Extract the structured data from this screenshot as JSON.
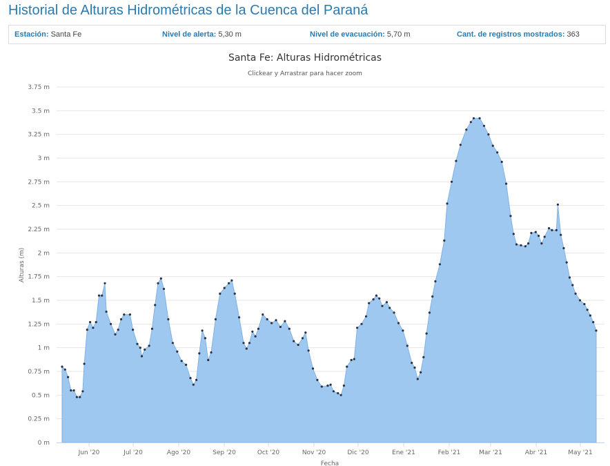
{
  "header": {
    "title": "Historial de Alturas Hidrométricas de la Cuenca del Paraná"
  },
  "info": {
    "station_label": "Estación:",
    "station_value": "Santa Fe",
    "alert_label": "Nivel de alerta:",
    "alert_value": "5,30 m",
    "evac_label": "Nivel de evacuación:",
    "evac_value": "5,70 m",
    "count_label": "Cant. de registros mostrados:",
    "count_value": "363"
  },
  "colors": {
    "title": "#2a7ab0",
    "area_fill": "#9ec8f0",
    "area_line": "#7fb2e5",
    "marker": "#2b3140",
    "grid": "#e6e6e6"
  },
  "chart_data": {
    "type": "area",
    "title": "Santa Fe: Alturas Hidrométricas",
    "subtitle": "Clickear y Arrastrar para hacer zoom",
    "xlabel": "Fecha",
    "ylabel": "Alturas (m)",
    "ylim": [
      0,
      3.75
    ],
    "yticks": [
      "0 m",
      "0.25 m",
      "0.5 m",
      "0.75 m",
      "1 m",
      "1.25 m",
      "1.5 m",
      "1.75 m",
      "2 m",
      "2.25 m",
      "2.5 m",
      "2.75 m",
      "3 m",
      "3.25 m",
      "3.5 m",
      "3.75 m"
    ],
    "xticks": [
      "Jun '20",
      "Jul '20",
      "Ago '20",
      "Sep '20",
      "Oct '20",
      "Nov '20",
      "Dic '20",
      "Ene '21",
      "Feb '21",
      "Mar '21",
      "Abr '21",
      "May '21"
    ],
    "grid": true,
    "legend": false,
    "records_shown": 363,
    "x_range": [
      "2020-05-11",
      "2021-05-08"
    ],
    "series": [
      {
        "name": "Santa Fe",
        "points": [
          [
            "2020-05-11",
            0.8
          ],
          [
            "2020-05-13",
            0.77
          ],
          [
            "2020-05-15",
            0.69
          ],
          [
            "2020-05-17",
            0.55
          ],
          [
            "2020-05-19",
            0.55
          ],
          [
            "2020-05-21",
            0.48
          ],
          [
            "2020-05-23",
            0.48
          ],
          [
            "2020-05-25",
            0.54
          ],
          [
            "2020-05-26",
            0.83
          ],
          [
            "2020-05-28",
            1.19
          ],
          [
            "2020-05-30",
            1.27
          ],
          [
            "2020-06-01",
            1.21
          ],
          [
            "2020-06-03",
            1.27
          ],
          [
            "2020-06-05",
            1.55
          ],
          [
            "2020-06-07",
            1.55
          ],
          [
            "2020-06-09",
            1.68
          ],
          [
            "2020-06-10",
            1.38
          ],
          [
            "2020-06-13",
            1.25
          ],
          [
            "2020-06-16",
            1.14
          ],
          [
            "2020-06-18",
            1.19
          ],
          [
            "2020-06-20",
            1.3
          ],
          [
            "2020-06-22",
            1.35
          ],
          [
            "2020-06-26",
            1.35
          ],
          [
            "2020-06-28",
            1.19
          ],
          [
            "2020-07-01",
            1.04
          ],
          [
            "2020-07-03",
            1.0
          ],
          [
            "2020-07-04",
            0.91
          ],
          [
            "2020-07-06",
            0.98
          ],
          [
            "2020-07-09",
            1.02
          ],
          [
            "2020-07-11",
            1.2
          ],
          [
            "2020-07-13",
            1.45
          ],
          [
            "2020-07-15",
            1.68
          ],
          [
            "2020-07-17",
            1.73
          ],
          [
            "2020-07-19",
            1.62
          ],
          [
            "2020-07-22",
            1.3
          ],
          [
            "2020-07-25",
            1.05
          ],
          [
            "2020-07-28",
            0.96
          ],
          [
            "2020-07-31",
            0.86
          ],
          [
            "2020-08-03",
            0.82
          ],
          [
            "2020-08-06",
            0.68
          ],
          [
            "2020-08-08",
            0.61
          ],
          [
            "2020-08-10",
            0.66
          ],
          [
            "2020-08-12",
            0.94
          ],
          [
            "2020-08-14",
            1.18
          ],
          [
            "2020-08-16",
            1.1
          ],
          [
            "2020-08-18",
            0.87
          ],
          [
            "2020-08-20",
            0.95
          ],
          [
            "2020-08-23",
            1.3
          ],
          [
            "2020-08-26",
            1.57
          ],
          [
            "2020-08-29",
            1.63
          ],
          [
            "2020-09-01",
            1.68
          ],
          [
            "2020-09-03",
            1.71
          ],
          [
            "2020-09-05",
            1.57
          ],
          [
            "2020-09-08",
            1.32
          ],
          [
            "2020-09-11",
            1.05
          ],
          [
            "2020-09-13",
            0.99
          ],
          [
            "2020-09-15",
            1.05
          ],
          [
            "2020-09-17",
            1.17
          ],
          [
            "2020-09-19",
            1.12
          ],
          [
            "2020-09-21",
            1.2
          ],
          [
            "2020-09-24",
            1.35
          ],
          [
            "2020-09-27",
            1.3
          ],
          [
            "2020-09-30",
            1.26
          ],
          [
            "2020-10-03",
            1.29
          ],
          [
            "2020-10-06",
            1.22
          ],
          [
            "2020-10-09",
            1.28
          ],
          [
            "2020-10-12",
            1.2
          ],
          [
            "2020-10-15",
            1.07
          ],
          [
            "2020-10-18",
            1.03
          ],
          [
            "2020-10-21",
            1.1
          ],
          [
            "2020-10-23",
            1.16
          ],
          [
            "2020-10-25",
            0.97
          ],
          [
            "2020-10-28",
            0.78
          ],
          [
            "2020-10-31",
            0.66
          ],
          [
            "2020-11-03",
            0.59
          ],
          [
            "2020-11-07",
            0.6
          ],
          [
            "2020-11-09",
            0.61
          ],
          [
            "2020-11-11",
            0.54
          ],
          [
            "2020-11-14",
            0.52
          ],
          [
            "2020-11-16",
            0.5
          ],
          [
            "2020-11-18",
            0.6
          ],
          [
            "2020-11-20",
            0.8
          ],
          [
            "2020-11-23",
            0.87
          ],
          [
            "2020-11-25",
            0.88
          ],
          [
            "2020-11-27",
            1.21
          ],
          [
            "2020-11-30",
            1.25
          ],
          [
            "2020-12-03",
            1.33
          ],
          [
            "2020-12-05",
            1.47
          ],
          [
            "2020-12-08",
            1.51
          ],
          [
            "2020-12-10",
            1.55
          ],
          [
            "2020-12-12",
            1.52
          ],
          [
            "2020-12-14",
            1.44
          ],
          [
            "2020-12-17",
            1.48
          ],
          [
            "2020-12-19",
            1.42
          ],
          [
            "2020-12-22",
            1.37
          ],
          [
            "2020-12-25",
            1.26
          ],
          [
            "2020-12-28",
            1.18
          ],
          [
            "2020-12-31",
            1.02
          ],
          [
            "2021-01-03",
            0.84
          ],
          [
            "2021-01-05",
            0.79
          ],
          [
            "2021-01-07",
            0.67
          ],
          [
            "2021-01-09",
            0.74
          ],
          [
            "2021-01-11",
            0.9
          ],
          [
            "2021-01-13",
            1.15
          ],
          [
            "2021-01-15",
            1.37
          ],
          [
            "2021-01-17",
            1.54
          ],
          [
            "2021-01-19",
            1.7
          ],
          [
            "2021-01-22",
            1.88
          ],
          [
            "2021-01-25",
            2.13
          ],
          [
            "2021-01-27",
            2.52
          ],
          [
            "2021-01-30",
            2.75
          ],
          [
            "2021-02-02",
            2.97
          ],
          [
            "2021-02-05",
            3.14
          ],
          [
            "2021-02-09",
            3.3
          ],
          [
            "2021-02-12",
            3.38
          ],
          [
            "2021-02-14",
            3.42
          ],
          [
            "2021-02-18",
            3.42
          ],
          [
            "2021-02-21",
            3.34
          ],
          [
            "2021-02-24",
            3.25
          ],
          [
            "2021-02-27",
            3.13
          ],
          [
            "2021-03-02",
            3.06
          ],
          [
            "2021-03-05",
            2.96
          ],
          [
            "2021-03-08",
            2.73
          ],
          [
            "2021-03-11",
            2.39
          ],
          [
            "2021-03-13",
            2.2
          ],
          [
            "2021-03-15",
            2.09
          ],
          [
            "2021-03-18",
            2.08
          ],
          [
            "2021-03-21",
            2.07
          ],
          [
            "2021-03-23",
            2.1
          ],
          [
            "2021-03-25",
            2.21
          ],
          [
            "2021-03-28",
            2.22
          ],
          [
            "2021-03-30",
            2.18
          ],
          [
            "2021-04-01",
            2.1
          ],
          [
            "2021-04-03",
            2.17
          ],
          [
            "2021-04-06",
            2.26
          ],
          [
            "2021-04-08",
            2.24
          ],
          [
            "2021-04-11",
            2.24
          ],
          [
            "2021-04-12",
            2.51
          ],
          [
            "2021-04-14",
            2.19
          ],
          [
            "2021-04-16",
            2.05
          ],
          [
            "2021-04-18",
            1.9
          ],
          [
            "2021-04-20",
            1.74
          ],
          [
            "2021-04-22",
            1.66
          ],
          [
            "2021-04-24",
            1.57
          ],
          [
            "2021-04-27",
            1.5
          ],
          [
            "2021-04-30",
            1.46
          ],
          [
            "2021-05-02",
            1.4
          ],
          [
            "2021-05-04",
            1.34
          ],
          [
            "2021-05-06",
            1.27
          ],
          [
            "2021-05-08",
            1.18
          ]
        ]
      }
    ]
  }
}
